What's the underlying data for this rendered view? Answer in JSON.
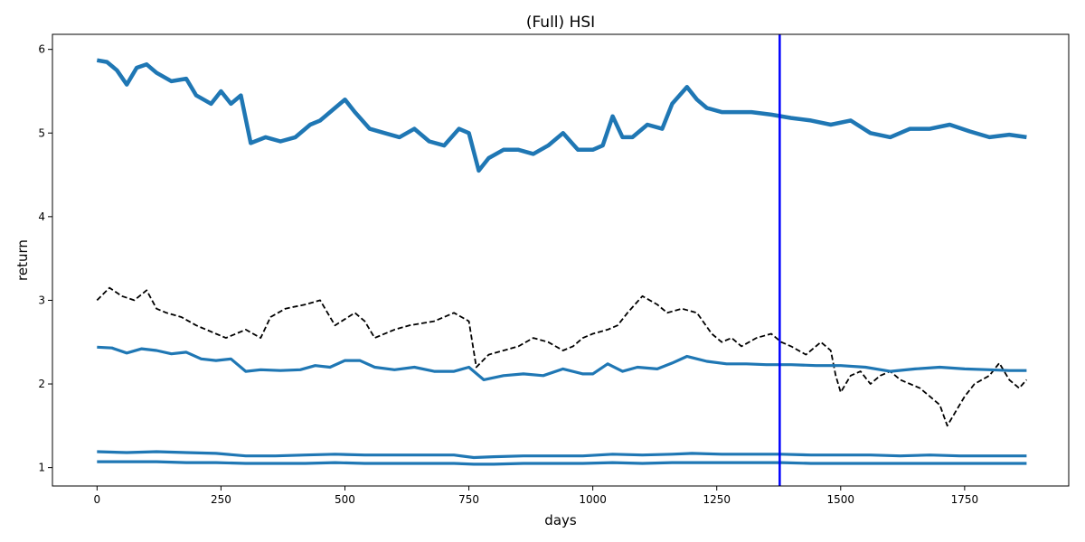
{
  "chart_data": {
    "type": "line",
    "title": "(Full) HSI",
    "xlabel": "days",
    "ylabel": "return",
    "xlim": [
      -90,
      1960
    ],
    "ylim": [
      0.78,
      6.18
    ],
    "xticks": [
      0,
      250,
      500,
      750,
      1000,
      1250,
      1500,
      1750
    ],
    "yticks": [
      1,
      2,
      3,
      4,
      5,
      6
    ],
    "grid": false,
    "legend": "none",
    "vline": {
      "x": 1377,
      "color": "#0000ff"
    },
    "colors": {
      "band": "#1f77b4",
      "price": "#000000"
    },
    "series": [
      {
        "style": "dashed",
        "color": "#000000",
        "x": [
          0,
          25,
          50,
          75,
          100,
          120,
          140,
          170,
          200,
          240,
          260,
          300,
          330,
          350,
          380,
          420,
          450,
          470,
          480,
          520,
          540,
          560,
          600,
          630,
          680,
          720,
          750,
          765,
          790,
          820,
          850,
          880,
          910,
          940,
          960,
          980,
          1000,
          1030,
          1050,
          1070,
          1100,
          1130,
          1150,
          1180,
          1210,
          1240,
          1260,
          1280,
          1300,
          1330,
          1360,
          1380,
          1400,
          1430,
          1460,
          1480,
          1490,
          1500,
          1520,
          1540,
          1560,
          1580,
          1600,
          1620,
          1640,
          1660,
          1680,
          1700,
          1715,
          1730,
          1750,
          1770,
          1800,
          1820,
          1840,
          1860,
          1875
        ],
        "y": [
          3.0,
          3.15,
          3.05,
          3.0,
          3.12,
          2.9,
          2.85,
          2.8,
          2.7,
          2.6,
          2.55,
          2.65,
          2.55,
          2.8,
          2.9,
          2.95,
          3.0,
          2.8,
          2.7,
          2.85,
          2.75,
          2.55,
          2.65,
          2.7,
          2.75,
          2.85,
          2.75,
          2.2,
          2.35,
          2.4,
          2.45,
          2.55,
          2.5,
          2.4,
          2.45,
          2.55,
          2.6,
          2.65,
          2.7,
          2.85,
          3.05,
          2.95,
          2.85,
          2.9,
          2.85,
          2.6,
          2.5,
          2.55,
          2.45,
          2.55,
          2.6,
          2.5,
          2.45,
          2.35,
          2.5,
          2.4,
          2.1,
          1.9,
          2.1,
          2.15,
          2.0,
          2.1,
          2.15,
          2.05,
          2.0,
          1.95,
          1.85,
          1.75,
          1.5,
          1.65,
          1.85,
          2.0,
          2.1,
          2.25,
          2.05,
          1.95,
          2.05
        ]
      },
      {
        "style": "solid",
        "color": "#1f77b4",
        "x": [
          0,
          20,
          40,
          60,
          80,
          100,
          120,
          150,
          180,
          200,
          230,
          250,
          270,
          290,
          310,
          340,
          370,
          400,
          430,
          450,
          480,
          500,
          520,
          550,
          580,
          610,
          640,
          670,
          700,
          730,
          750,
          770,
          790,
          820,
          850,
          880,
          910,
          940,
          970,
          1000,
          1020,
          1040,
          1060,
          1080,
          1110,
          1140,
          1160,
          1190,
          1210,
          1230,
          1260,
          1290,
          1320,
          1360,
          1400,
          1440,
          1480,
          1520,
          1560,
          1600,
          1640,
          1680,
          1720,
          1760,
          1800,
          1840,
          1875
        ],
        "y": [
          5.87,
          5.85,
          5.75,
          5.58,
          5.78,
          5.82,
          5.72,
          5.62,
          5.65,
          5.45,
          5.35,
          5.5,
          5.35,
          5.45,
          4.88,
          4.95,
          4.9,
          4.95,
          5.1,
          5.15,
          5.3,
          5.4,
          5.25,
          5.05,
          5.0,
          4.95,
          5.05,
          4.9,
          4.85,
          5.05,
          5.0,
          4.55,
          4.7,
          4.8,
          4.8,
          4.75,
          4.85,
          5.0,
          4.8,
          4.8,
          4.85,
          5.2,
          4.95,
          4.95,
          5.1,
          5.05,
          5.35,
          5.55,
          5.4,
          5.3,
          5.25,
          5.25,
          5.25,
          5.22,
          5.18,
          5.15,
          5.1,
          5.15,
          5.0,
          4.95,
          5.05,
          5.05,
          5.1,
          5.02,
          4.95,
          4.98,
          4.95
        ]
      },
      {
        "style": "solid",
        "color": "#1f77b4",
        "x": [
          0,
          30,
          60,
          90,
          120,
          150,
          180,
          210,
          240,
          270,
          300,
          330,
          370,
          410,
          440,
          470,
          500,
          530,
          560,
          600,
          640,
          680,
          720,
          750,
          780,
          820,
          860,
          900,
          940,
          980,
          1000,
          1030,
          1060,
          1090,
          1130,
          1160,
          1190,
          1230,
          1270,
          1310,
          1350,
          1400,
          1450,
          1500,
          1550,
          1600,
          1650,
          1700,
          1750,
          1800,
          1840,
          1875
        ],
        "y": [
          2.44,
          2.43,
          2.37,
          2.42,
          2.4,
          2.36,
          2.38,
          2.3,
          2.28,
          2.3,
          2.15,
          2.17,
          2.16,
          2.17,
          2.22,
          2.2,
          2.28,
          2.28,
          2.2,
          2.17,
          2.2,
          2.15,
          2.15,
          2.2,
          2.05,
          2.1,
          2.12,
          2.1,
          2.18,
          2.12,
          2.12,
          2.24,
          2.15,
          2.2,
          2.18,
          2.25,
          2.33,
          2.27,
          2.24,
          2.24,
          2.23,
          2.23,
          2.22,
          2.22,
          2.2,
          2.15,
          2.18,
          2.2,
          2.18,
          2.17,
          2.16,
          2.16
        ]
      },
      {
        "style": "solid",
        "color": "#1f77b4",
        "x": [
          0,
          60,
          120,
          180,
          240,
          300,
          360,
          420,
          480,
          540,
          600,
          660,
          720,
          760,
          800,
          860,
          920,
          980,
          1040,
          1100,
          1160,
          1200,
          1260,
          1320,
          1380,
          1440,
          1500,
          1560,
          1620,
          1680,
          1740,
          1800,
          1875
        ],
        "y": [
          1.19,
          1.18,
          1.19,
          1.18,
          1.17,
          1.14,
          1.14,
          1.15,
          1.16,
          1.15,
          1.15,
          1.15,
          1.15,
          1.12,
          1.13,
          1.14,
          1.14,
          1.14,
          1.16,
          1.15,
          1.16,
          1.17,
          1.16,
          1.16,
          1.16,
          1.15,
          1.15,
          1.15,
          1.14,
          1.15,
          1.14,
          1.14,
          1.14
        ]
      },
      {
        "style": "solid",
        "color": "#1f77b4",
        "x": [
          0,
          60,
          120,
          180,
          240,
          300,
          360,
          420,
          480,
          540,
          600,
          660,
          720,
          760,
          800,
          860,
          920,
          980,
          1040,
          1100,
          1160,
          1200,
          1260,
          1320,
          1380,
          1440,
          1500,
          1560,
          1620,
          1680,
          1740,
          1800,
          1875
        ],
        "y": [
          1.07,
          1.07,
          1.07,
          1.06,
          1.06,
          1.05,
          1.05,
          1.05,
          1.06,
          1.05,
          1.05,
          1.05,
          1.05,
          1.04,
          1.04,
          1.05,
          1.05,
          1.05,
          1.06,
          1.05,
          1.06,
          1.06,
          1.06,
          1.06,
          1.06,
          1.05,
          1.05,
          1.05,
          1.05,
          1.05,
          1.05,
          1.05,
          1.05
        ]
      }
    ]
  }
}
